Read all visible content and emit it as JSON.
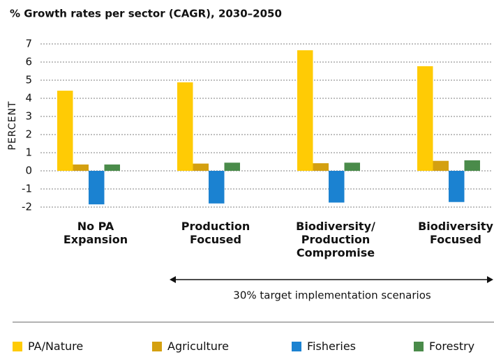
{
  "chart_data": {
    "type": "bar",
    "title": "% Growth rates per sector (CAGR), 2030–2050",
    "y_label": "PERCENT",
    "annotation": "30% target implementation scenarios",
    "categories": [
      "No PA\nExpansion",
      "Production\nFocused",
      "Biodiversity/\nProduction\nCompromise",
      "Biodiversity\nFocused"
    ],
    "series": [
      {
        "name": "PA/Nature",
        "color": "#ffcb05",
        "values": [
          4.42,
          4.88,
          6.65,
          5.77
        ]
      },
      {
        "name": "Agriculture",
        "color": "#d4a010",
        "values": [
          0.35,
          0.4,
          0.42,
          0.55
        ]
      },
      {
        "name": "Fisheries",
        "color": "#1b82d1",
        "values": [
          -1.85,
          -1.8,
          -1.75,
          -1.72
        ]
      },
      {
        "name": "Forestry",
        "color": "#4a8b4a",
        "values": [
          0.35,
          0.45,
          0.45,
          0.58
        ]
      }
    ],
    "ylim": [
      -2,
      7
    ],
    "yticks": [
      -2,
      -1,
      0,
      1,
      2,
      3,
      4,
      5,
      6,
      7
    ],
    "grid": true
  }
}
